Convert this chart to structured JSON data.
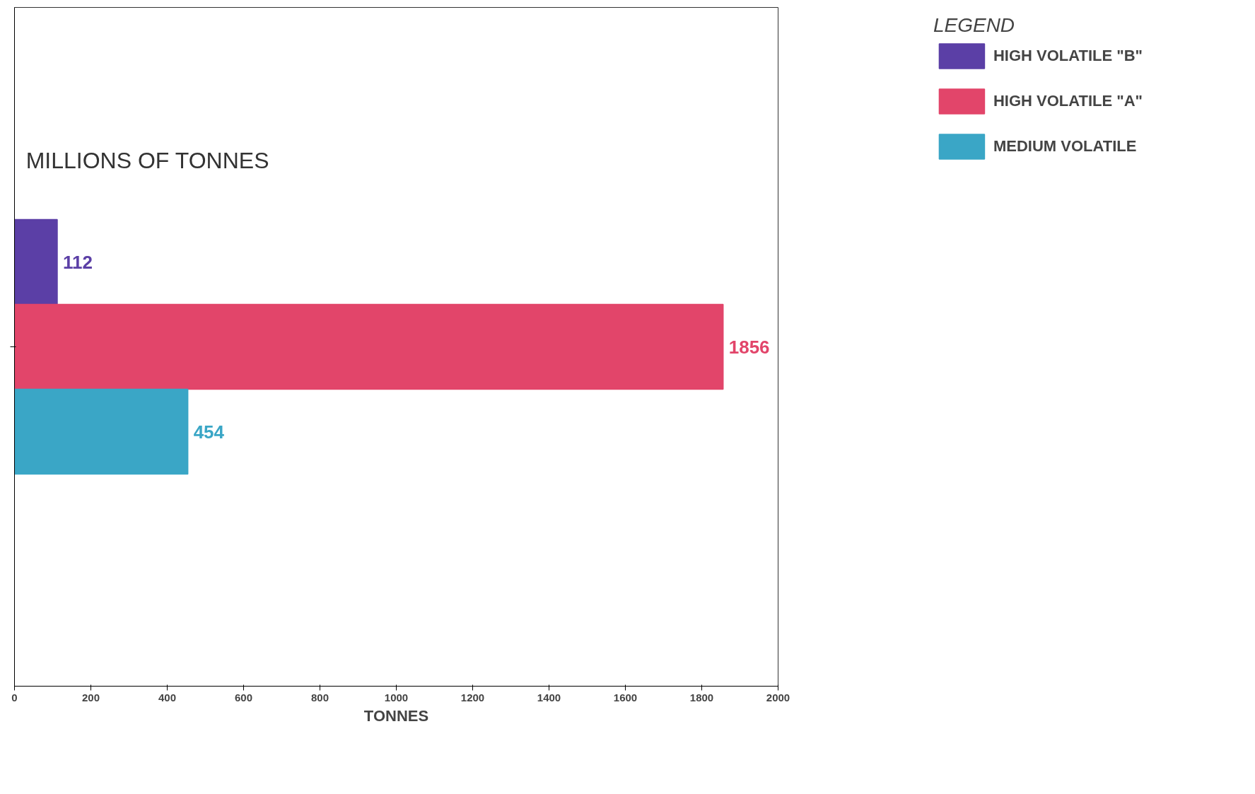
{
  "chart_data": {
    "type": "bar",
    "orientation": "horizontal",
    "categories": [
      null
    ],
    "series": [
      {
        "name": "HIGH VOLATILE \"B\"",
        "color": "#5b3fa6",
        "values": [
          112
        ]
      },
      {
        "name": "HIGH VOLATILE \"A\"",
        "color": "#e2456a",
        "values": [
          1856
        ]
      },
      {
        "name": "MEDIUM VOLATILE",
        "color": "#3aa6c6",
        "values": [
          454
        ]
      }
    ],
    "xlabel": "TONNES",
    "legend_title": "LEGEND",
    "legend": "top right",
    "xlim": [
      0,
      2000
    ],
    "xticks": [
      0,
      200,
      400,
      600,
      800,
      1000,
      1200,
      1400,
      1600,
      1800,
      2000
    ],
    "data_labels": true,
    "grid": false,
    "annotations": [
      "MILLIONS OF TONNES"
    ]
  }
}
